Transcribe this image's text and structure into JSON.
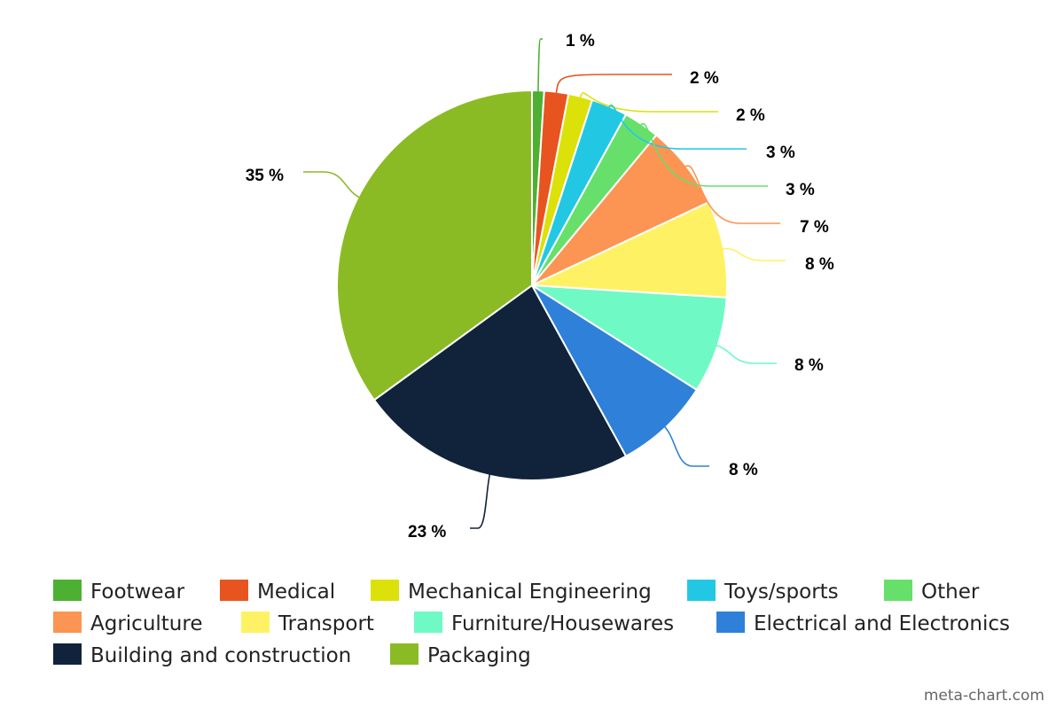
{
  "chart_data": {
    "type": "pie",
    "title": "",
    "start_angle_deg": 0,
    "direction": "clockwise",
    "slices": [
      {
        "name": "Footwear",
        "value": 1,
        "label": "1 %",
        "color": "#4db032"
      },
      {
        "name": "Medical",
        "value": 2,
        "label": "2 %",
        "color": "#e8541f"
      },
      {
        "name": "Mechanical Engineering",
        "value": 2,
        "label": "2 %",
        "color": "#dce10a"
      },
      {
        "name": "Toys/sports",
        "value": 3,
        "label": "3 %",
        "color": "#22c8e3"
      },
      {
        "name": "Other",
        "value": 3,
        "label": "3 %",
        "color": "#66e06a"
      },
      {
        "name": "Agriculture",
        "value": 7,
        "label": "7 %",
        "color": "#fc9553"
      },
      {
        "name": "Transport",
        "value": 8,
        "label": "8 %",
        "color": "#fef264"
      },
      {
        "name": "Furniture/Housewares",
        "value": 8,
        "label": "8 %",
        "color": "#6ff9c5"
      },
      {
        "name": "Electrical and Electronics",
        "value": 8,
        "label": "8 %",
        "color": "#2f80d9"
      },
      {
        "name": "Building and construction",
        "value": 23,
        "label": "23 %",
        "color": "#10233b"
      },
      {
        "name": "Packaging",
        "value": 35,
        "label": "35 %",
        "color": "#8bbb24"
      }
    ],
    "legend_position": "bottom"
  },
  "credit": "meta-chart.com"
}
